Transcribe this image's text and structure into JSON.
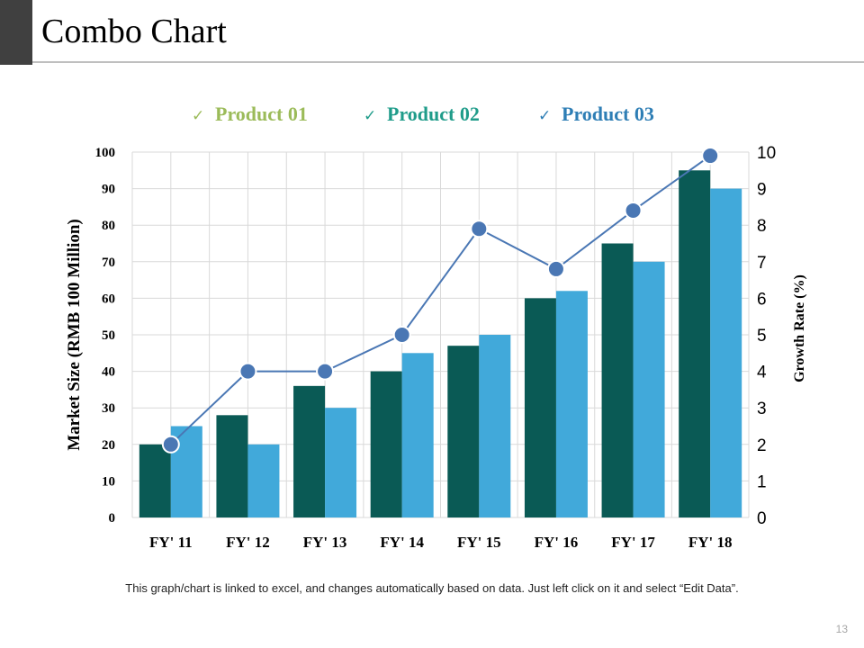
{
  "slide": {
    "title": "Combo Chart",
    "footnote": "This graph/chart is linked to excel, and changes automatically based on data. Just left click on it and select “Edit Data”.",
    "page_number": "13",
    "accent_color": "#404040"
  },
  "chart_data": {
    "type": "bar",
    "title": "",
    "xlabel": "",
    "ylabel": "Market Size (RMB 100 Million)",
    "y2label": "Growth Rate (%)",
    "categories": [
      "FY' 11",
      "FY' 12",
      "FY' 13",
      "FY' 14",
      "FY' 15",
      "FY' 16",
      "FY' 17",
      "FY' 18"
    ],
    "ylim": [
      0,
      100
    ],
    "yticks": [
      "0",
      "10",
      "20",
      "30",
      "40",
      "50",
      "60",
      "70",
      "80",
      "90",
      "100"
    ],
    "y2lim": [
      0,
      10
    ],
    "y2ticks": [
      "0",
      "1",
      "2",
      "3",
      "4",
      "5",
      "6",
      "7",
      "8",
      "9",
      "10"
    ],
    "grid": true,
    "legend_position": "top-center",
    "legend": [
      {
        "check": "✓",
        "label": "Product 01",
        "color": "#9bbb59"
      },
      {
        "check": "✓",
        "label": "Product 02",
        "color": "#1f9c8a"
      },
      {
        "check": "✓",
        "label": "Product 03",
        "color": "#2e7eb5"
      }
    ],
    "series": [
      {
        "name": "Product 01",
        "type": "bar",
        "axis": "left",
        "color": "#0a5a55",
        "values": [
          20,
          28,
          36,
          40,
          47,
          60,
          75,
          95
        ]
      },
      {
        "name": "Product 02",
        "type": "bar",
        "axis": "left",
        "color": "#41a9da",
        "values": [
          25,
          20,
          30,
          45,
          50,
          62,
          70,
          90
        ]
      },
      {
        "name": "Product 03",
        "type": "line",
        "axis": "right",
        "color": "#4a77b4",
        "values": [
          2,
          4,
          4,
          5,
          7.9,
          6.8,
          8.4,
          9.9
        ]
      }
    ]
  }
}
